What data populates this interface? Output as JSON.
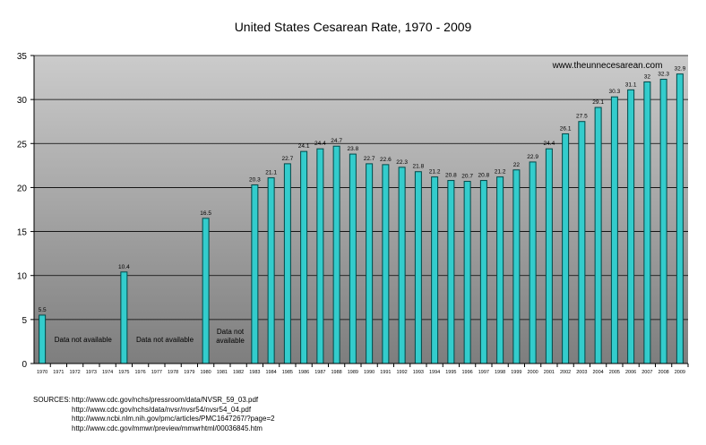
{
  "chart_data": {
    "type": "bar",
    "title": "United States Cesarean Rate, 1970 - 2009",
    "watermark": "www.theunnecesarean.com",
    "categories": [
      "1970",
      "1971",
      "1972",
      "1973",
      "1974",
      "1975",
      "1976",
      "1977",
      "1978",
      "1979",
      "1980",
      "1981",
      "1982",
      "1983",
      "1984",
      "1985",
      "1986",
      "1987",
      "1988",
      "1989",
      "1990",
      "1991",
      "1992",
      "1993",
      "1994",
      "1995",
      "1996",
      "1997",
      "1998",
      "1999",
      "2000",
      "2001",
      "2002",
      "2003",
      "2004",
      "2005",
      "2006",
      "2007",
      "2008",
      "2009"
    ],
    "values": [
      5.5,
      null,
      null,
      null,
      null,
      10.4,
      null,
      null,
      null,
      null,
      16.5,
      null,
      null,
      20.3,
      21.1,
      22.7,
      24.1,
      24.4,
      24.7,
      23.8,
      22.7,
      22.6,
      22.3,
      21.8,
      21.2,
      20.8,
      20.7,
      20.8,
      21.2,
      22,
      22.9,
      24.4,
      26.1,
      27.5,
      29.1,
      30.3,
      31.1,
      32,
      32.3,
      32.9
    ],
    "ylim": [
      0,
      35
    ],
    "yticks": [
      0,
      5,
      10,
      15,
      20,
      25,
      30,
      35
    ],
    "grid": true,
    "bar_color": "#33cccc",
    "annotations": [
      {
        "text": "Data not available",
        "from": "1971",
        "to": "1974"
      },
      {
        "text": "Data not available",
        "from": "1976",
        "to": "1979"
      },
      {
        "text": "Data not\navailable",
        "from": "1981",
        "to": "1982"
      }
    ]
  },
  "sources": {
    "label": "SOURCES:",
    "urls": [
      "http://www.cdc.gov/nchs/pressroom/data/NVSR_59_03.pdf",
      "http://www.cdc.gov/nchs/data/nvsr/nvsr54/nvsr54_04.pdf",
      "http://www.ncbi.nlm.nih.gov/pmc/articles/PMC1647267/?page=2",
      "http://www.cdc.gov/mmwr/preview/mmwrhtml/00036845.htm"
    ]
  }
}
